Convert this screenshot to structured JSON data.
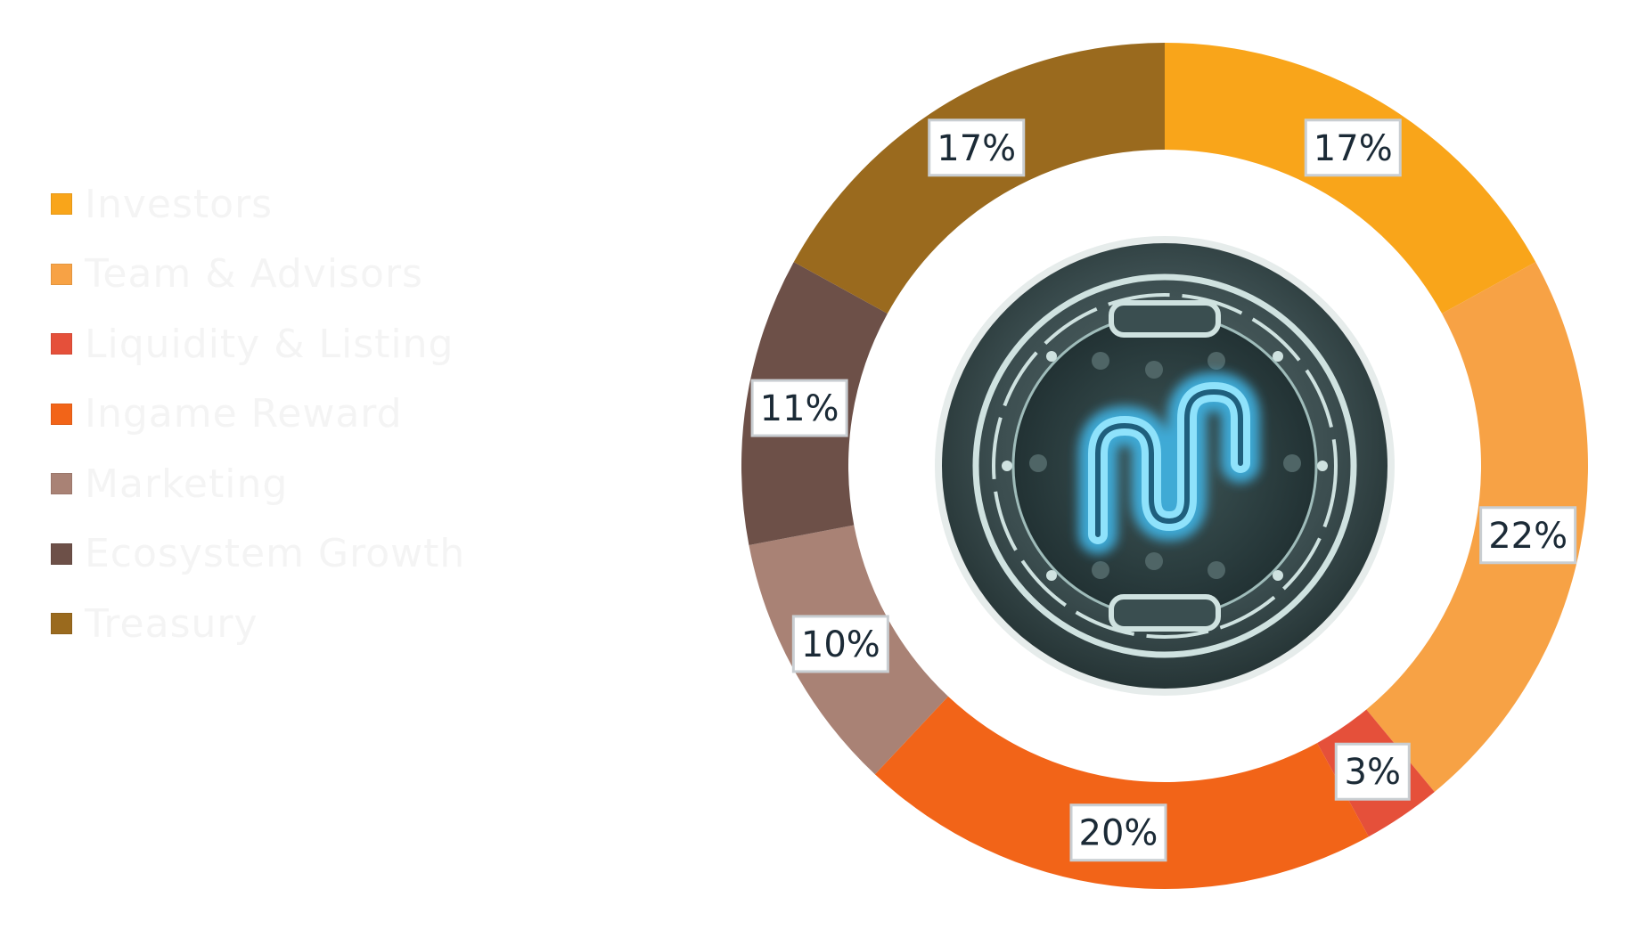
{
  "chart_data": {
    "type": "pie",
    "title": "",
    "categories": [
      "Investors",
      "Team & Advisors",
      "Liquidity & Listing",
      "Ingame Reward",
      "Marketing",
      "Ecosystem Growth",
      "Treasury"
    ],
    "values": [
      17,
      22,
      3,
      20,
      10,
      11,
      17
    ],
    "labels": [
      "17%",
      "22%",
      "3%",
      "20%",
      "10%",
      "11%",
      "17%"
    ],
    "unit": "%",
    "donut": true,
    "legend_position": "left",
    "colors": [
      "#f9a51a",
      "#f7a245",
      "#e5503a",
      "#f26418",
      "#a98275",
      "#6d5048",
      "#9a6a1e"
    ]
  },
  "legend": {
    "items": [
      {
        "label": "Investors",
        "color": "#f9a51a"
      },
      {
        "label": "Team & Advisors",
        "color": "#f7a245"
      },
      {
        "label": "Liquidity & Listing",
        "color": "#e5503a"
      },
      {
        "label": "Ingame Reward",
        "color": "#f26418"
      },
      {
        "label": "Marketing",
        "color": "#a98275"
      },
      {
        "label": "Ecosystem Growth",
        "color": "#6d5048"
      },
      {
        "label": "Treasury",
        "color": "#9a6a1e"
      }
    ]
  },
  "center_logo": {
    "icon": "game-token-logo-icon",
    "colors": {
      "ring": "#3d5052",
      "inner": "#2e4344",
      "glow": "#56c8ee",
      "frame": "#cfe2e0"
    }
  }
}
